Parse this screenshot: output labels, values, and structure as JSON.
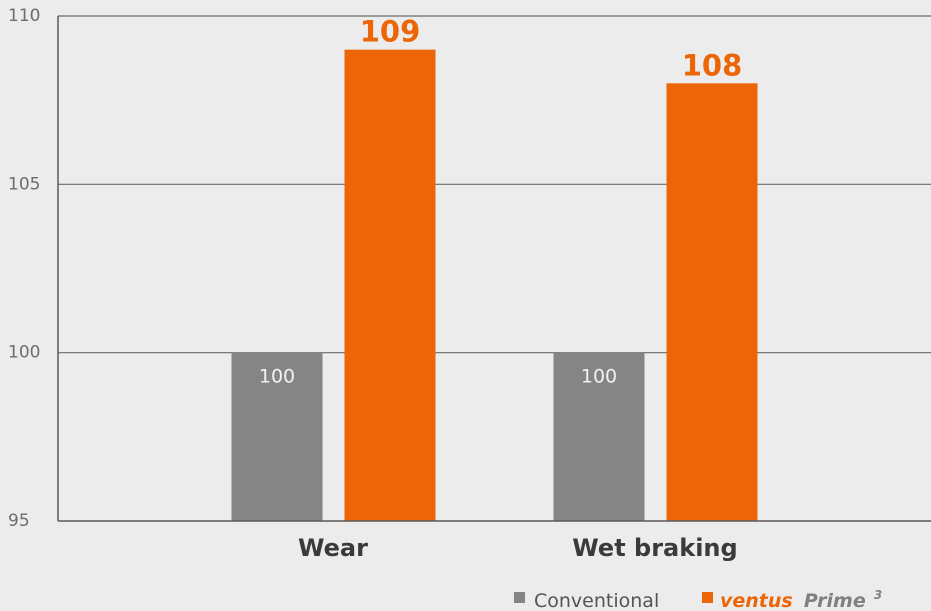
{
  "chart_data": {
    "type": "bar",
    "title": "",
    "xlabel": "",
    "ylabel": "",
    "categories": [
      "Wear",
      "Wet braking"
    ],
    "series": [
      {
        "name": "Conventional",
        "values": [
          100,
          100
        ],
        "color": "#858585"
      },
      {
        "name": "ventus Prime",
        "values": [
          109,
          108
        ],
        "color": "#ec6608"
      }
    ],
    "ylim": [
      95,
      110
    ],
    "yticks": [
      95,
      100,
      105,
      110
    ],
    "grid": true,
    "legend_position": "bottom-right",
    "legend": {
      "conventional": "Conventional",
      "brand": "ventus",
      "brand_suffix": "Prime",
      "brand_sup": "3"
    }
  }
}
